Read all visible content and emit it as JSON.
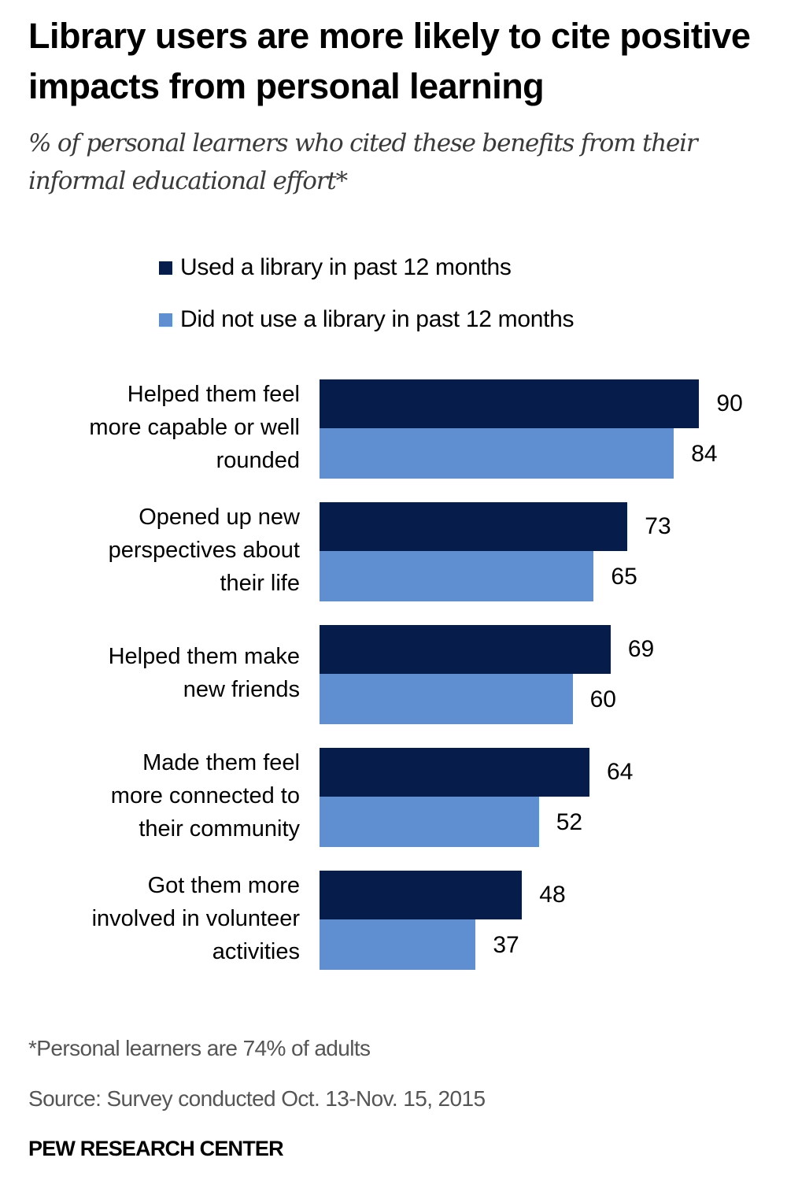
{
  "header": {
    "title": "Library users are more likely to cite positive impacts from personal learning",
    "subtitle": "% of personal learners who cited these benefits from their informal educational effort*"
  },
  "colors": {
    "series_used": "#061c4a",
    "series_not_used": "#5f8fd0",
    "text": "#000000",
    "muted_text": "#555555"
  },
  "legend": {
    "items": [
      {
        "label": "Used a library in past 12 months",
        "color": "#061c4a"
      },
      {
        "label": "Did not use a library in past 12 months",
        "color": "#5f8fd0"
      }
    ]
  },
  "chart_data": {
    "type": "bar",
    "orientation": "horizontal",
    "title": "Library users are more likely to cite positive impacts from personal learning",
    "subtitle": "% of personal learners who cited these benefits from their informal educational effort*",
    "xlabel": "",
    "ylabel": "",
    "categories": [
      "Helped them feel more capable or well rounded",
      "Opened up new perspectives about their life",
      "Helped them make new friends",
      "Made them feel more connected to their community",
      "Got them more involved in volunteer activities"
    ],
    "series": [
      {
        "name": "Used a library in past 12 months",
        "color": "#061c4a",
        "values": [
          90,
          73,
          69,
          64,
          48
        ]
      },
      {
        "name": "Did not use a library in past 12 months",
        "color": "#5f8fd0",
        "values": [
          84,
          65,
          60,
          52,
          37
        ]
      }
    ],
    "xlim": [
      0,
      100
    ],
    "grid": false,
    "data_labels": true,
    "legend_position": "top"
  },
  "rows": [
    {
      "label_lines": [
        "Helped them feel",
        "more capable or well",
        "rounded"
      ],
      "used": 90,
      "not_used": 84
    },
    {
      "label_lines": [
        "Opened up new",
        "perspectives about",
        "their life"
      ],
      "used": 73,
      "not_used": 65
    },
    {
      "label_lines": [
        "Helped them make",
        "new friends"
      ],
      "used": 69,
      "not_used": 60
    },
    {
      "label_lines": [
        "Made them feel",
        "more connected to",
        "their community"
      ],
      "used": 64,
      "not_used": 52
    },
    {
      "label_lines": [
        "Got them more",
        "involved in volunteer",
        "activities"
      ],
      "used": 48,
      "not_used": 37
    }
  ],
  "footer": {
    "footnote": "*Personal learners are 74% of adults",
    "source": "Source: Survey conducted Oct. 13-Nov. 15, 2015",
    "brand": "PEW RESEARCH CENTER"
  }
}
